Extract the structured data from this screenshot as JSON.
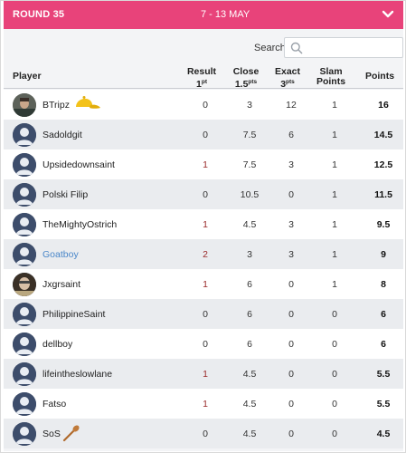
{
  "header": {
    "round": "ROUND 35",
    "dates": "7 - 13 MAY"
  },
  "search": {
    "label": "Search:",
    "placeholder": ""
  },
  "columns": {
    "player": "Player",
    "result": "Result",
    "result_sub": "1",
    "result_sup": "pt",
    "close": "Close",
    "close_sub": "1.5",
    "close_sup": "pts",
    "exact": "Exact",
    "exact_sub": "3",
    "exact_sup": "pts",
    "slam": "Slam",
    "slam_sub": "Points",
    "points": "Points"
  },
  "rows": [
    {
      "name": "BTripz",
      "result": "0",
      "close": "3",
      "exact": "12",
      "slam": "1",
      "points": "16",
      "badge": "cap-icon",
      "avatar": "photo-1"
    },
    {
      "name": "Sadoldgit",
      "result": "0",
      "close": "7.5",
      "exact": "6",
      "slam": "1",
      "points": "14.5"
    },
    {
      "name": "Upsidedownsaint",
      "result": "1",
      "close": "7.5",
      "exact": "3",
      "slam": "1",
      "points": "12.5"
    },
    {
      "name": "Polski Filip",
      "result": "0",
      "close": "10.5",
      "exact": "0",
      "slam": "1",
      "points": "11.5"
    },
    {
      "name": "TheMightyOstrich",
      "result": "1",
      "close": "4.5",
      "exact": "3",
      "slam": "1",
      "points": "9.5"
    },
    {
      "name": "Goatboy",
      "result": "2",
      "close": "3",
      "exact": "3",
      "slam": "1",
      "points": "9",
      "highlight": true
    },
    {
      "name": "Jxgrsaint",
      "result": "1",
      "close": "6",
      "exact": "0",
      "slam": "1",
      "points": "8",
      "avatar": "photo-2"
    },
    {
      "name": "PhilippineSaint",
      "result": "0",
      "close": "6",
      "exact": "0",
      "slam": "0",
      "points": "6"
    },
    {
      "name": "dellboy",
      "result": "0",
      "close": "6",
      "exact": "0",
      "slam": "0",
      "points": "6"
    },
    {
      "name": "lifeintheslowlane",
      "result": "1",
      "close": "4.5",
      "exact": "0",
      "slam": "0",
      "points": "5.5"
    },
    {
      "name": "Fatso",
      "result": "1",
      "close": "4.5",
      "exact": "0",
      "slam": "0",
      "points": "5.5"
    },
    {
      "name": "SoS",
      "result": "0",
      "close": "4.5",
      "exact": "0",
      "slam": "0",
      "points": "4.5",
      "badge": "wooden-spoon-icon"
    }
  ],
  "colors": {
    "header": "#e8437a",
    "link": "#4a87c9",
    "result_red": "#9a2a2a"
  }
}
